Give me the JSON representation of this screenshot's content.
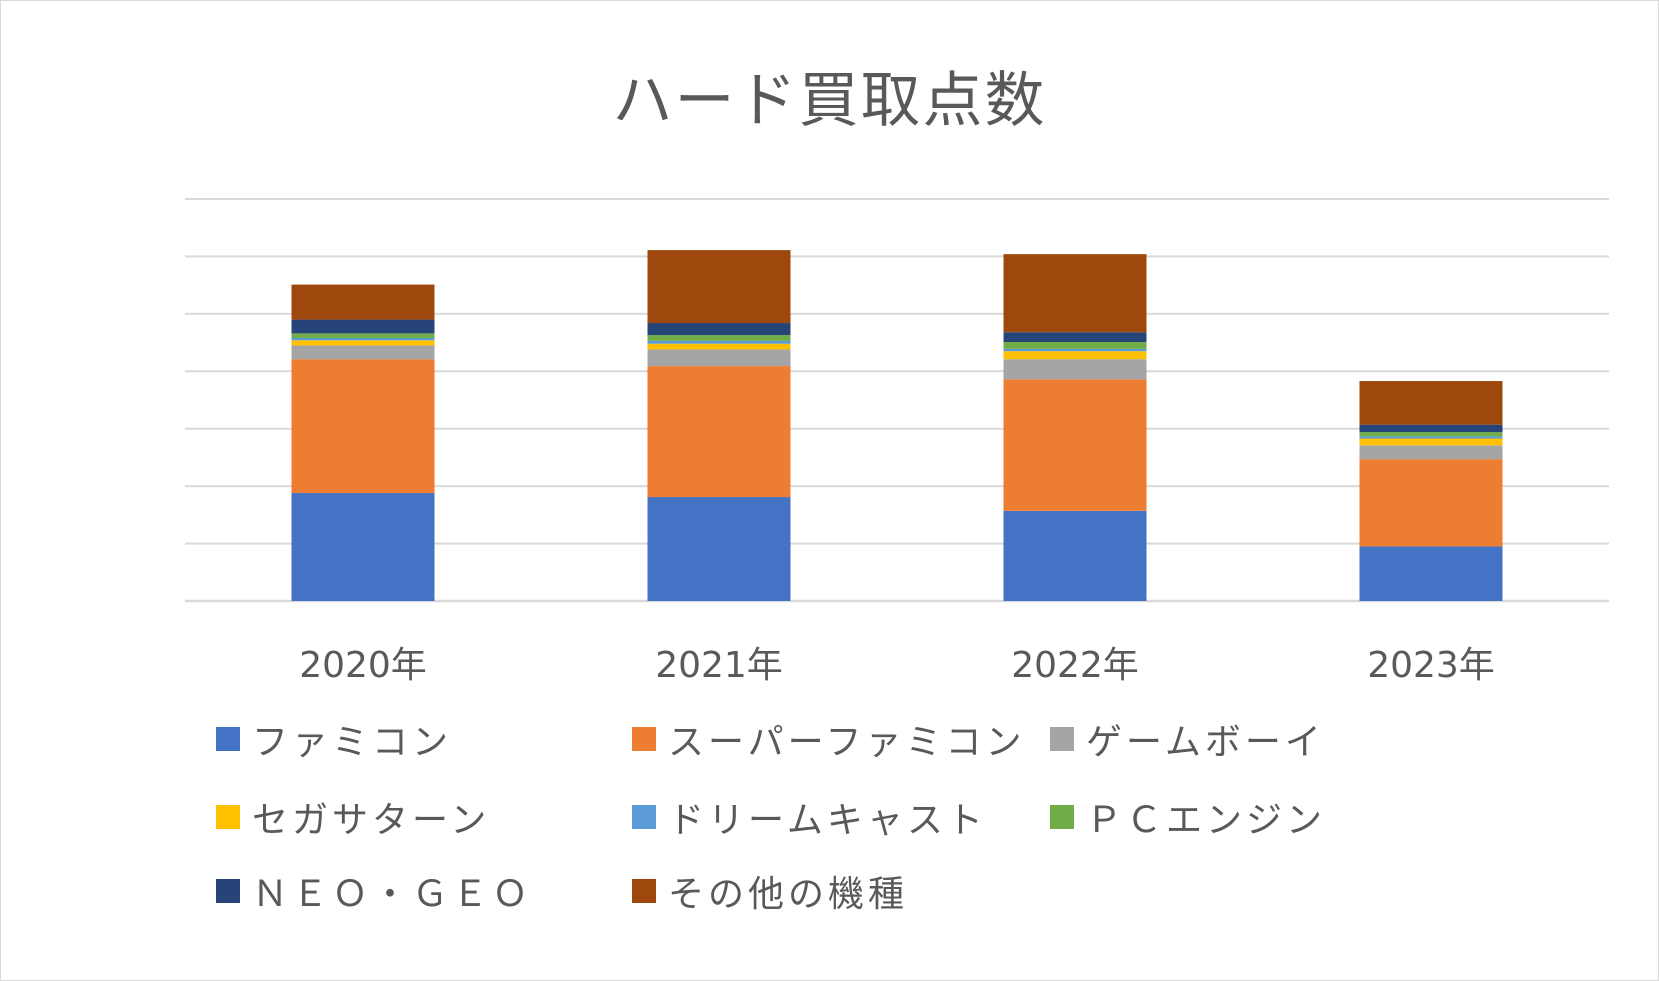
{
  "chart_data": {
    "type": "bar",
    "stacked": true,
    "title": "ハード買取点数",
    "categories": [
      "2020年",
      "2021年",
      "2022年",
      "2023年"
    ],
    "ylim": [
      0,
      7
    ],
    "grid": true,
    "legend_position": "bottom",
    "series": [
      {
        "name": "ファミコン",
        "color": "#4472C4",
        "values": [
          1.88,
          1.81,
          1.57,
          0.95
        ]
      },
      {
        "name": "スーパーファミコン",
        "color": "#ED7D31",
        "values": [
          2.33,
          2.28,
          2.29,
          1.52
        ]
      },
      {
        "name": "ゲームボーイ",
        "color": "#A5A5A5",
        "values": [
          0.24,
          0.29,
          0.35,
          0.24
        ]
      },
      {
        "name": "セガサターン",
        "color": "#FFC000",
        "values": [
          0.09,
          0.1,
          0.14,
          0.12
        ]
      },
      {
        "name": "ドリームキャスト",
        "color": "#5B9BD5",
        "values": [
          0.04,
          0.05,
          0.04,
          0.04
        ]
      },
      {
        "name": "ＰＣエンジン",
        "color": "#70AD47",
        "values": [
          0.08,
          0.1,
          0.12,
          0.07
        ]
      },
      {
        "name": "ＮＥＯ・ＧＥＯ",
        "color": "#264478",
        "values": [
          0.24,
          0.21,
          0.17,
          0.13
        ]
      },
      {
        "name": "その他の機種",
        "color": "#9E480E",
        "values": [
          0.61,
          1.27,
          1.36,
          0.76
        ]
      }
    ]
  }
}
